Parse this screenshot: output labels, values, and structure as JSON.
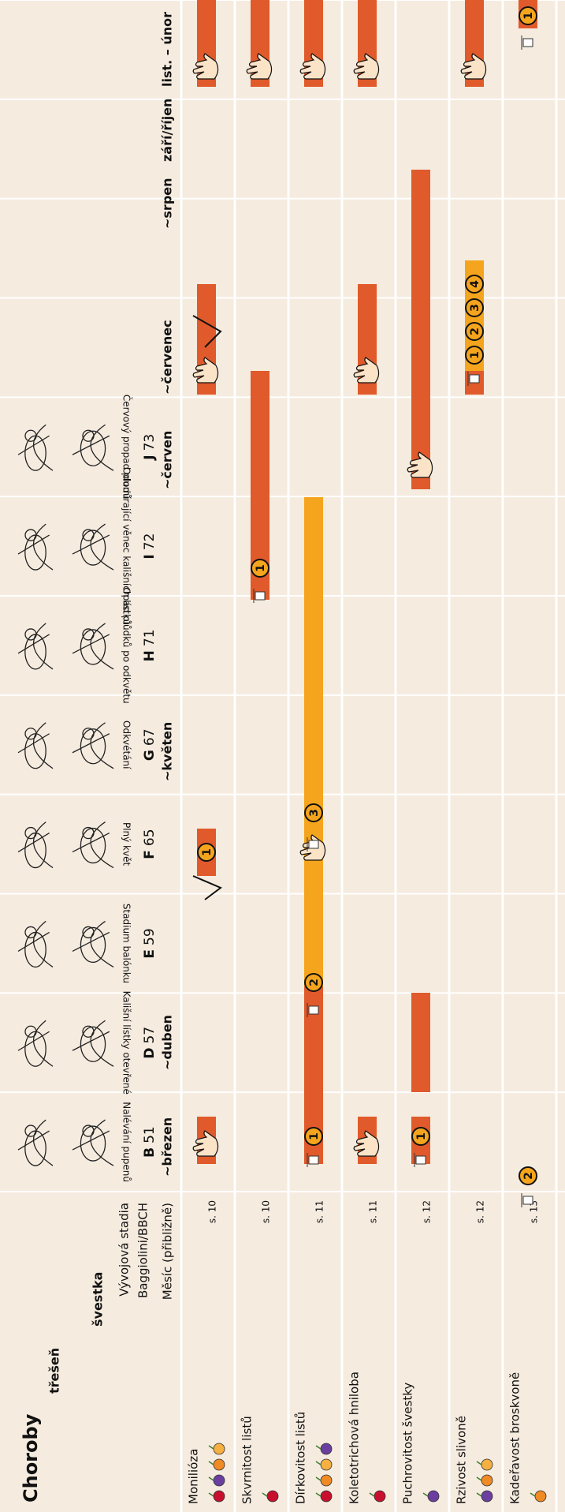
{
  "header": {
    "title": "Choroby",
    "species": [
      "třešeň",
      "švestka"
    ],
    "stage_label": [
      "Vývojová stadia",
      "Baggiolini/BBCH"
    ],
    "month_label": "Měsíc (přibližně)"
  },
  "stages": [
    {
      "code": "B",
      "number": "51",
      "caption": "Nalévání pupenů"
    },
    {
      "code": "D",
      "number": "57",
      "caption": "Kališní lístky otevřené"
    },
    {
      "code": "E",
      "number": "59",
      "caption": "Stadium balónku"
    },
    {
      "code": "F",
      "number": "65",
      "caption": "Plný květ"
    },
    {
      "code": "G",
      "number": "67",
      "caption": "Odkvétání"
    },
    {
      "code": "H",
      "number": "71",
      "caption": "Opad plůdků po odkvětu"
    },
    {
      "code": "I",
      "number": "72",
      "caption": "Odumírající věnec kališních lístků"
    },
    {
      "code": "J",
      "number": "73",
      "caption": "Červový propad plodů"
    }
  ],
  "months": [
    "~březen",
    "~duben",
    "~květen",
    "~červen",
    "~červenec",
    "~srpen",
    "září/říjen",
    "list. – únor"
  ],
  "rows": [
    {
      "name": "Monilióza",
      "page": "s. 10",
      "markers": [
        "1"
      ]
    },
    {
      "name": "Skvrnitost listů",
      "page": "s. 10",
      "markers": [
        "1"
      ]
    },
    {
      "name": "Dírkovitost listů",
      "page": "s. 11",
      "markers": [
        "1",
        "2",
        "3"
      ]
    },
    {
      "name": "Koletotrichová hniloba",
      "page": "s. 11",
      "markers": []
    },
    {
      "name": "Puchrovitost švestky",
      "page": "s. 12",
      "markers": [
        "1"
      ]
    },
    {
      "name": "Rzivost slivoně",
      "page": "s. 12",
      "markers": [
        "1",
        "2",
        "3",
        "4"
      ]
    },
    {
      "name": "Kadeřavost broskvoně",
      "page": "s. 13",
      "markers": [
        "2",
        "1"
      ]
    }
  ]
}
